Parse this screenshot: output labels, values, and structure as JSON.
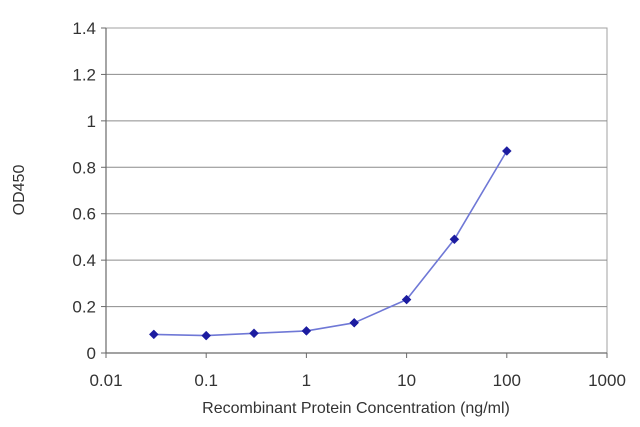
{
  "chart_data": {
    "type": "line",
    "title": "",
    "xlabel": "Recombinant Protein Concentration (ng/ml)",
    "ylabel": "OD450",
    "x_scale": "log",
    "xlim": [
      0.01,
      1000
    ],
    "ylim": [
      0,
      1.4
    ],
    "x_ticks": [
      0.01,
      0.1,
      1,
      10,
      100,
      1000
    ],
    "x_tick_labels": [
      "0.01",
      "0.1",
      "1",
      "10",
      "100",
      "1000"
    ],
    "y_ticks": [
      0,
      0.2,
      0.4,
      0.6,
      0.8,
      1,
      1.2,
      1.4
    ],
    "y_tick_labels": [
      "0",
      "0.2",
      "0.4",
      "0.6",
      "0.8",
      "1",
      "1.2",
      "1.4"
    ],
    "grid": "horizontal",
    "legend": "none",
    "series": [
      {
        "x": [
          0.03,
          0.1,
          0.3,
          1,
          3,
          10,
          30,
          100
        ],
        "y": [
          0.08,
          0.075,
          0.085,
          0.095,
          0.13,
          0.23,
          0.49,
          0.87
        ],
        "color": "#1c1ca0",
        "line_color": "#6f78d6"
      }
    ]
  }
}
